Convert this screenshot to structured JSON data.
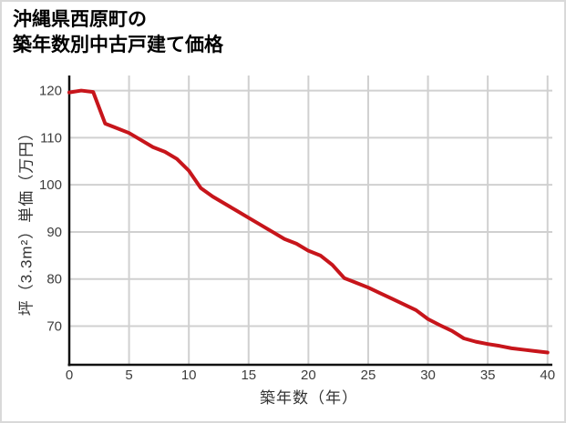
{
  "title": {
    "line1": "沖縄県西原町の",
    "line2": "築年数別中古戸建て価格"
  },
  "chart_data": {
    "type": "line",
    "title": "沖縄県西原町の築年数別中古戸建て価格",
    "xlabel": "築年数（年）",
    "ylabel": "坪（3.3m²）単価（万円）",
    "x": [
      0,
      1,
      2,
      3,
      4,
      5,
      6,
      7,
      8,
      9,
      10,
      11,
      12,
      13,
      14,
      15,
      16,
      17,
      18,
      19,
      20,
      21,
      22,
      23,
      24,
      25,
      26,
      27,
      28,
      29,
      30,
      31,
      32,
      33,
      34,
      35,
      36,
      37,
      38,
      39,
      40
    ],
    "values": [
      119.6,
      120,
      119.7,
      113,
      112,
      111,
      109.5,
      108,
      107,
      105.5,
      103,
      99.3,
      97.5,
      96,
      94.5,
      93,
      91.5,
      90,
      88.5,
      87.5,
      86,
      85,
      83,
      80.2,
      79.2,
      78.2,
      77,
      75.8,
      74.6,
      73.4,
      71.5,
      70.2,
      69,
      67.4,
      66.7,
      66.2,
      65.8,
      65.3,
      65,
      64.7,
      64.4
    ],
    "xticks": [
      0,
      5,
      10,
      15,
      20,
      25,
      30,
      35,
      40
    ],
    "yticks": [
      70,
      80,
      90,
      100,
      110,
      120
    ],
    "xlim": [
      0,
      40.4
    ],
    "ylim": [
      61.8,
      123.2
    ],
    "grid": true,
    "legend": false,
    "line_color": "#c7151b"
  },
  "colors": {
    "line": "#c7151b",
    "grid": "#d0d0d0",
    "axis": "#111111",
    "frame_border": "#d9d9d9",
    "tick_text": "#3d3d3d",
    "title_text": "#000000"
  }
}
